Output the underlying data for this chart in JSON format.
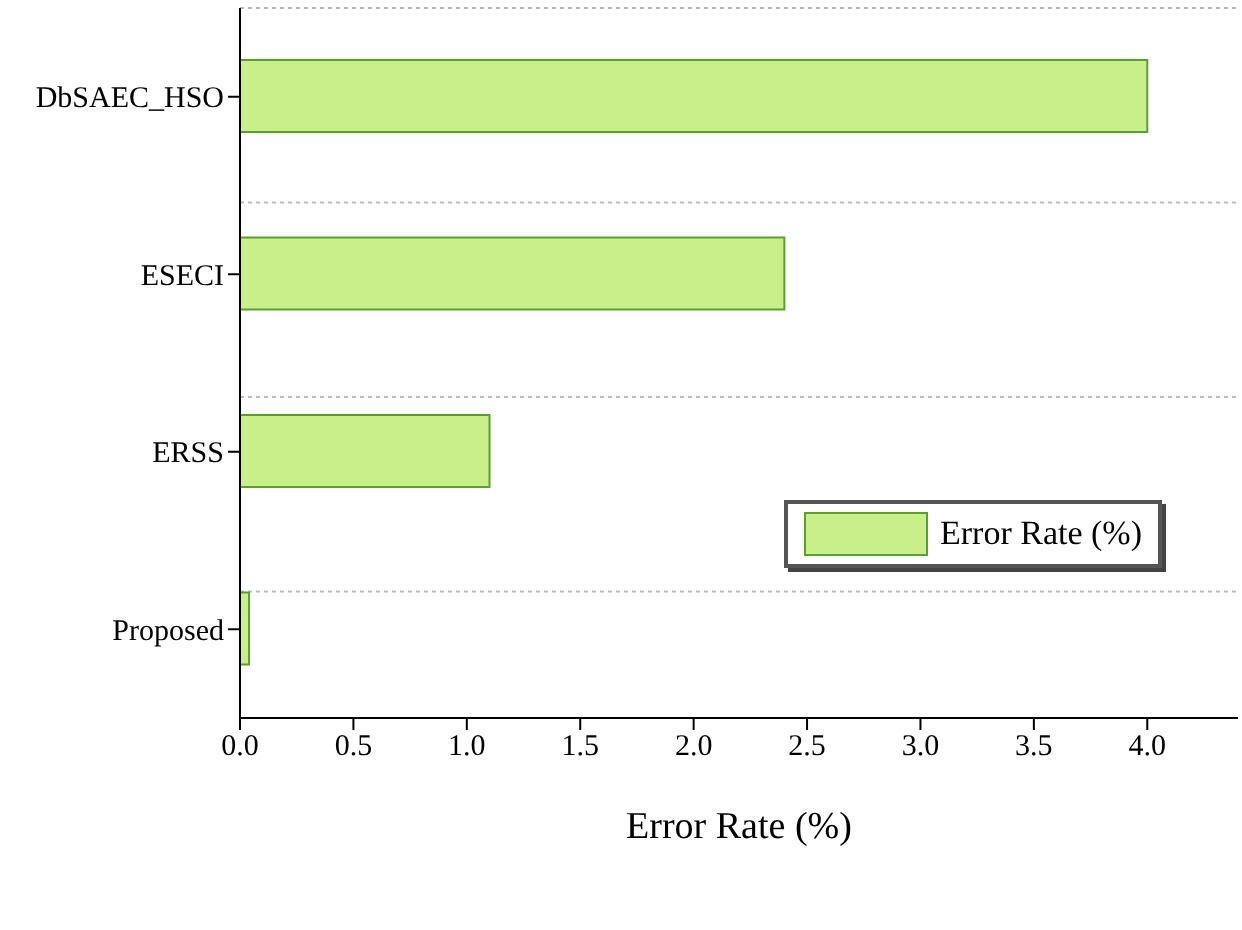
{
  "chart_data": {
    "type": "bar",
    "orientation": "horizontal",
    "categories": [
      "DbSAEC_HSO",
      "ESECI",
      "ERSS",
      "Proposed"
    ],
    "series": [
      {
        "name": "Error Rate (%)",
        "color": "#c8ef8a",
        "values": [
          4.0,
          2.4,
          1.1,
          0.04
        ]
      }
    ],
    "xlabel": "Error Rate (%)",
    "xlim": [
      0,
      4.4
    ],
    "xticks": [
      {
        "value": 0,
        "label": "0.0"
      },
      {
        "value": 0.5,
        "label": "0.5"
      },
      {
        "value": 1,
        "label": "1.0"
      },
      {
        "value": 1.5,
        "label": "1.5"
      },
      {
        "value": 2,
        "label": "2.0"
      },
      {
        "value": 2.5,
        "label": "2.5"
      },
      {
        "value": 3,
        "label": "3.0"
      },
      {
        "value": 3.5,
        "label": "3.5"
      },
      {
        "value": 4,
        "label": "4.0"
      }
    ],
    "grid": "y",
    "legend": "right"
  }
}
